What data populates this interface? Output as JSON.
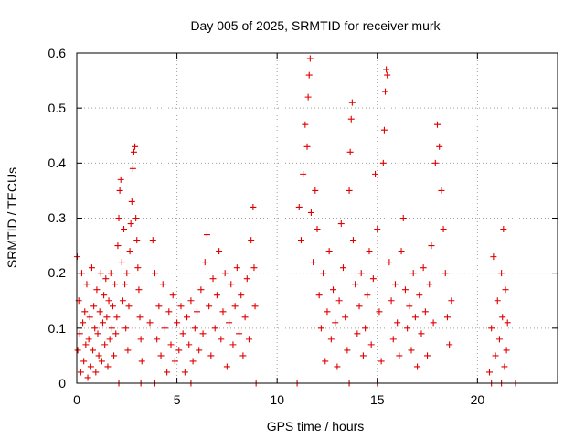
{
  "chart_data": {
    "type": "scatter",
    "title": "Day 005 of 2025, SRMTID for receiver murk",
    "xlabel": "GPS time / hours",
    "ylabel": "SRMTID / TECUs",
    "xlim": [
      0,
      24
    ],
    "ylim": [
      0,
      0.6
    ],
    "xticks": [
      "0",
      "5",
      "10",
      "15",
      "20"
    ],
    "yticks": [
      "0",
      "0.1",
      "0.2",
      "0.3",
      "0.4",
      "0.5",
      "0.6"
    ],
    "grid": true,
    "marker": "+",
    "color": "#e00000",
    "series": [
      {
        "points": [
          [
            0.02,
            0.23
          ],
          [
            0.05,
            0.06
          ],
          [
            0.1,
            0.15
          ],
          [
            0.15,
            0.09
          ],
          [
            0.2,
            0.02
          ],
          [
            0.25,
            0.2
          ],
          [
            0.3,
            0.11
          ],
          [
            0.35,
            0.04
          ],
          [
            0.4,
            0.13
          ],
          [
            0.45,
            0.07
          ],
          [
            0.5,
            0.18
          ],
          [
            0.55,
            0.01
          ],
          [
            0.6,
            0.08
          ],
          [
            0.65,
            0.12
          ],
          [
            0.7,
            0.03
          ],
          [
            0.75,
            0.21
          ],
          [
            0.8,
            0.06
          ],
          [
            0.85,
            0.14
          ],
          [
            0.9,
            0.1
          ],
          [
            0.95,
            0.02
          ],
          [
            1.0,
            0.17
          ],
          [
            1.05,
            0.09
          ],
          [
            1.1,
            0.05
          ],
          [
            1.15,
            0.13
          ],
          [
            1.2,
            0.2
          ],
          [
            1.25,
            0.04
          ],
          [
            1.3,
            0.11
          ],
          [
            1.35,
            0.16
          ],
          [
            1.4,
            0.07
          ],
          [
            1.45,
            0.19
          ],
          [
            1.5,
            0.12
          ],
          [
            1.55,
            0.03
          ],
          [
            1.6,
            0.15
          ],
          [
            1.65,
            0.08
          ],
          [
            1.7,
            0.2
          ],
          [
            1.75,
            0.1
          ],
          [
            1.8,
            0.14
          ],
          [
            1.85,
            0.05
          ],
          [
            1.9,
            0.18
          ],
          [
            1.95,
            0.09
          ],
          [
            2.0,
            0.12
          ],
          [
            2.05,
            0.25
          ],
          [
            2.1,
            0.3
          ],
          [
            2.15,
            0.35
          ],
          [
            2.2,
            0.37
          ],
          [
            2.25,
            0.22
          ],
          [
            2.3,
            0.15
          ],
          [
            2.35,
            0.28
          ],
          [
            2.4,
            0.18
          ],
          [
            2.45,
            0.1
          ],
          [
            2.5,
            0.2
          ],
          [
            2.55,
            0.06
          ],
          [
            2.6,
            0.14
          ],
          [
            2.65,
            0.24
          ],
          [
            2.7,
            0.29
          ],
          [
            2.75,
            0.33
          ],
          [
            2.8,
            0.39
          ],
          [
            2.85,
            0.42
          ],
          [
            2.9,
            0.43
          ],
          [
            2.95,
            0.3
          ],
          [
            3.0,
            0.26
          ],
          [
            3.05,
            0.21
          ],
          [
            3.1,
            0.17
          ],
          [
            3.15,
            0.12
          ],
          [
            3.2,
            0.08
          ],
          [
            3.25,
            0.04
          ],
          [
            3.65,
            0.11
          ],
          [
            3.8,
            0.26
          ],
          [
            3.9,
            0.2
          ],
          [
            4.0,
            0.08
          ],
          [
            4.1,
            0.14
          ],
          [
            4.2,
            0.05
          ],
          [
            4.3,
            0.18
          ],
          [
            4.4,
            0.1
          ],
          [
            4.5,
            0.02
          ],
          [
            4.6,
            0.13
          ],
          [
            4.7,
            0.07
          ],
          [
            4.8,
            0.16
          ],
          [
            4.9,
            0.04
          ],
          [
            5.0,
            0.11
          ],
          [
            5.1,
            0.06
          ],
          [
            5.2,
            0.14
          ],
          [
            5.3,
            0.09
          ],
          [
            5.4,
            0.02
          ],
          [
            5.5,
            0.12
          ],
          [
            5.6,
            0.07
          ],
          [
            5.7,
            0.15
          ],
          [
            5.8,
            0.04
          ],
          [
            5.9,
            0.1
          ],
          [
            6.0,
            0.13
          ],
          [
            6.1,
            0.06
          ],
          [
            6.2,
            0.17
          ],
          [
            6.3,
            0.09
          ],
          [
            6.4,
            0.22
          ],
          [
            6.5,
            0.27
          ],
          [
            6.6,
            0.14
          ],
          [
            6.7,
            0.05
          ],
          [
            6.8,
            0.19
          ],
          [
            6.9,
            0.1
          ],
          [
            7.0,
            0.16
          ],
          [
            7.1,
            0.24
          ],
          [
            7.2,
            0.08
          ],
          [
            7.3,
            0.13
          ],
          [
            7.4,
            0.2
          ],
          [
            7.5,
            0.03
          ],
          [
            7.6,
            0.11
          ],
          [
            7.7,
            0.18
          ],
          [
            7.8,
            0.07
          ],
          [
            7.9,
            0.14
          ],
          [
            8.0,
            0.21
          ],
          [
            8.1,
            0.09
          ],
          [
            8.2,
            0.16
          ],
          [
            8.3,
            0.05
          ],
          [
            8.4,
            0.12
          ],
          [
            8.5,
            0.19
          ],
          [
            8.6,
            0.08
          ],
          [
            8.7,
            0.26
          ],
          [
            8.8,
            0.32
          ],
          [
            8.85,
            0.21
          ],
          [
            8.9,
            0.14
          ],
          [
            11.1,
            0.32
          ],
          [
            11.2,
            0.26
          ],
          [
            11.3,
            0.38
          ],
          [
            11.4,
            0.47
          ],
          [
            11.5,
            0.43
          ],
          [
            11.55,
            0.52
          ],
          [
            11.6,
            0.56
          ],
          [
            11.65,
            0.59
          ],
          [
            11.7,
            0.31
          ],
          [
            11.8,
            0.22
          ],
          [
            11.9,
            0.35
          ],
          [
            12.0,
            0.28
          ],
          [
            12.1,
            0.16
          ],
          [
            12.2,
            0.1
          ],
          [
            12.3,
            0.2
          ],
          [
            12.4,
            0.04
          ],
          [
            12.5,
            0.13
          ],
          [
            12.6,
            0.24
          ],
          [
            12.7,
            0.08
          ],
          [
            12.8,
            0.17
          ],
          [
            12.9,
            0.11
          ],
          [
            13.0,
            0.03
          ],
          [
            13.1,
            0.15
          ],
          [
            13.2,
            0.29
          ],
          [
            13.3,
            0.21
          ],
          [
            13.4,
            0.12
          ],
          [
            13.5,
            0.06
          ],
          [
            13.6,
            0.35
          ],
          [
            13.65,
            0.42
          ],
          [
            13.7,
            0.48
          ],
          [
            13.75,
            0.51
          ],
          [
            13.8,
            0.26
          ],
          [
            13.9,
            0.18
          ],
          [
            14.0,
            0.09
          ],
          [
            14.1,
            0.14
          ],
          [
            14.2,
            0.2
          ],
          [
            14.3,
            0.05
          ],
          [
            14.4,
            0.1
          ],
          [
            14.5,
            0.16
          ],
          [
            14.6,
            0.24
          ],
          [
            14.7,
            0.07
          ],
          [
            14.8,
            0.19
          ],
          [
            14.9,
            0.38
          ],
          [
            15.0,
            0.28
          ],
          [
            15.1,
            0.13
          ],
          [
            15.2,
            0.04
          ],
          [
            15.3,
            0.4
          ],
          [
            15.35,
            0.46
          ],
          [
            15.4,
            0.53
          ],
          [
            15.45,
            0.57
          ],
          [
            15.5,
            0.56
          ],
          [
            15.6,
            0.22
          ],
          [
            15.7,
            0.15
          ],
          [
            15.8,
            0.08
          ],
          [
            15.9,
            0.18
          ],
          [
            16.0,
            0.11
          ],
          [
            16.1,
            0.05
          ],
          [
            16.2,
            0.24
          ],
          [
            16.3,
            0.3
          ],
          [
            16.4,
            0.17
          ],
          [
            16.5,
            0.1
          ],
          [
            16.6,
            0.14
          ],
          [
            16.7,
            0.06
          ],
          [
            16.8,
            0.2
          ],
          [
            16.9,
            0.12
          ],
          [
            17.0,
            0.03
          ],
          [
            17.1,
            0.16
          ],
          [
            17.2,
            0.09
          ],
          [
            17.3,
            0.21
          ],
          [
            17.4,
            0.13
          ],
          [
            17.5,
            0.05
          ],
          [
            17.6,
            0.18
          ],
          [
            17.7,
            0.25
          ],
          [
            17.8,
            0.11
          ],
          [
            17.9,
            0.4
          ],
          [
            18.0,
            0.47
          ],
          [
            18.1,
            0.43
          ],
          [
            18.2,
            0.35
          ],
          [
            18.3,
            0.28
          ],
          [
            18.4,
            0.2
          ],
          [
            18.5,
            0.12
          ],
          [
            18.6,
            0.07
          ],
          [
            18.7,
            0.15
          ],
          [
            20.6,
            0.02
          ],
          [
            20.7,
            0.1
          ],
          [
            20.8,
            0.23
          ],
          [
            20.9,
            0.05
          ],
          [
            21.0,
            0.15
          ],
          [
            21.1,
            0.08
          ],
          [
            21.2,
            0.2
          ],
          [
            21.25,
            0.12
          ],
          [
            21.3,
            0.28
          ],
          [
            21.35,
            0.03
          ],
          [
            21.4,
            0.17
          ],
          [
            21.45,
            0.06
          ],
          [
            21.5,
            0.11
          ],
          [
            2.1,
            0
          ],
          [
            3.2,
            0
          ],
          [
            3.9,
            0
          ],
          [
            5.7,
            0
          ],
          [
            8.95,
            0
          ],
          [
            11.0,
            0
          ],
          [
            13.6,
            0
          ],
          [
            15.0,
            0
          ],
          [
            20.7,
            0
          ],
          [
            21.2,
            0
          ],
          [
            21.9,
            0
          ]
        ]
      }
    ]
  }
}
